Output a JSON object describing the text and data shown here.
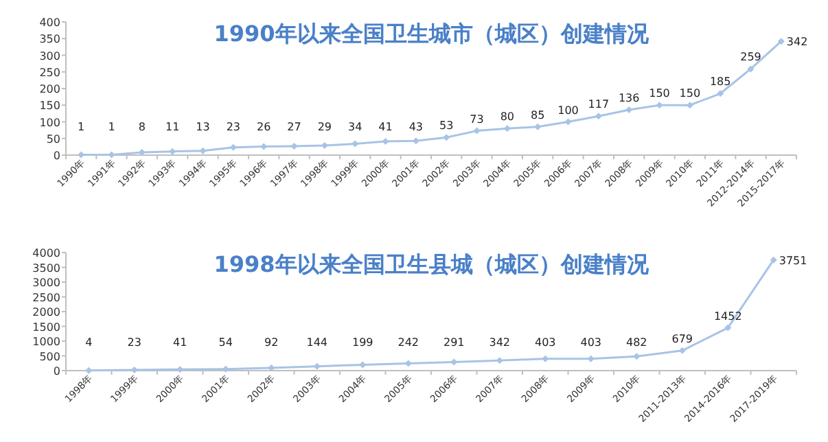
{
  "chart_data": [
    {
      "type": "line",
      "title": "1990年以来全国卫生城市（城区）创建情况",
      "categories": [
        "1990年",
        "1991年",
        "1992年",
        "1993年",
        "1994年",
        "1995年",
        "1996年",
        "1997年",
        "1998年",
        "1999年",
        "2000年",
        "2001年",
        "2002年",
        "2003年",
        "2004年",
        "2005年",
        "2006年",
        "2007年",
        "2008年",
        "2009年",
        "2010年",
        "2011年",
        "2012-2014年",
        "2015-2017年"
      ],
      "series": [
        {
          "color": "#a8c3e6",
          "values": [
            1,
            1,
            8,
            11,
            13,
            23,
            26,
            27,
            29,
            34,
            41,
            43,
            53,
            73,
            80,
            85,
            100,
            117,
            136,
            150,
            150,
            185,
            259,
            342
          ]
        }
      ],
      "ylim": [
        0,
        400
      ],
      "yticks": [
        0,
        50,
        100,
        150,
        200,
        250,
        300,
        350,
        400
      ],
      "data_labels": true,
      "marker": "diamond",
      "line_style": "solid"
    },
    {
      "type": "line",
      "title": "1998年以来全国卫生县城（城区）创建情况",
      "categories": [
        "1998年",
        "1999年",
        "2000年",
        "2001年",
        "2002年",
        "2003年",
        "2004年",
        "2005年",
        "2006年",
        "2007年",
        "2008年",
        "2009年",
        "2010年",
        "2011-2013年",
        "2014-2016年",
        "2017-2019年"
      ],
      "series": [
        {
          "color": "#a8c3e6",
          "values": [
            4,
            23,
            41,
            54,
            92,
            144,
            199,
            242,
            291,
            342,
            403,
            403,
            482,
            679,
            1452,
            3751
          ]
        }
      ],
      "ylim": [
        0,
        4000
      ],
      "yticks": [
        0,
        500,
        1000,
        1500,
        2000,
        2500,
        3000,
        3500,
        4000
      ],
      "data_labels": true,
      "marker": "diamond",
      "line_style": "solid"
    }
  ]
}
